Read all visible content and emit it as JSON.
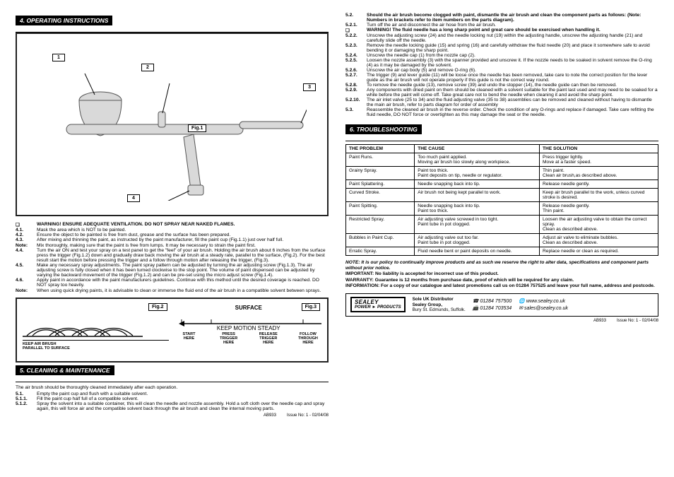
{
  "left": {
    "sec4_title": "4.  OPERATING INSTRUCTIONS",
    "fig1_label": "Fig.1",
    "callouts": {
      "c1": "1",
      "c2": "2",
      "c3": "3",
      "c4": "4"
    },
    "warn_line": "WARNING! ENSURE ADEQUATE VENTILATION. DO NOT SPRAY NEAR NAKED FLAMES.",
    "i41_num": "4.1.",
    "i41": "Mask the area which is NOT to be painted.",
    "i42_num": "4.2.",
    "i42": "Ensure the object to be painted is free from dust, grease and the surface has been prepared.",
    "i43_num": "4.3.",
    "i43": "After mixing and thinning the paint, as instructed by the paint manufacturer, fill the paint cup (Fig.1.1) just over half full.",
    "note1_label": "Note:",
    "note1": "Mix thoroughly, making sure that the paint is free from lumps. It may be necessary to strain the paint first.",
    "i44_num": "4.4.",
    "i44": "Turn the air ON and test your spray on a test panel to get the \"feel\" of your air brush. Holding the air brush about 6 inches from the surface press the trigger (Fig.1.2) down and gradually draw back moving the air brush at a steady rate, parallel to the surface, (Fig.2). For the best result start the motion before pressing the trigger and a follow through motion after releasing the trigger, (Fig.3).",
    "i45_num": "4.5.",
    "i45": "Make any necessary spray adjustments. The paint spray pattern can be adjusted by turning the air adjusting screw (Fig.1.3). The air adjusting screw is fully closed when it has been turned clockwise to the stop point. The volume of paint dispensed can be adjusted by varying the backward movement of the trigger (Fig.1.2) and can be pre-set using the micro adjust screw (Fig.1.4).",
    "i46_num": "4.6.",
    "i46": "Apply paint in accordance with the paint manufacturers guidelines. Continue with this method until the desired coverage is reached. DO NOT spray too heavily.",
    "note2_label": "Note:",
    "note2": "When using quick drying paints, it is advisable to clean or immerse the fluid end of the air brush in a compatible solvent between sprays.",
    "fig2_label": "Fig.2",
    "fig2_caption1": "KEEP AIR BRUSH",
    "fig2_caption2": "PARALLEL TO SURFACE",
    "fig3_label": "Fig.3",
    "fig3_surface": "SURFACE",
    "fig3_steady": "KEEP MOTION STEADY",
    "m1a": "START",
    "m1b": "HERE",
    "m2a": "PRESS",
    "m2b": "TRIGGER",
    "m2c": "HERE",
    "m3a": "RELEASE",
    "m3b": "TRIGGER",
    "m3c": "HERE",
    "m4a": "FOLLOW",
    "m4b": "THROUGH",
    "m4c": "HERE",
    "sec5_title": "5.  CLEANING & MAINTENANCE",
    "c5_intro": "The air brush should be thoroughly cleaned immediately after each operation.",
    "c51_num": "5.1.",
    "c51": "Empty the paint cup and flush with a suitable solvent.",
    "c511_num": "5.1.1.",
    "c511": "Fill the paint cup half full of a compatible solvent.",
    "c512_num": "5.1.2.",
    "c512": "Spray the solvent into a suitable container, this will clean the needle and nozzle assembly. Hold a soft cloth over the needle cap and spray again, this will force air and the compatible solvent back through the air brush and clean the internal moving parts.",
    "issue_left": "AB933         Issue No: 1 - 02/04/08"
  },
  "right": {
    "r52_num": "5.2.",
    "r52": "Should the air brush become clogged with paint, dismantle the air brush and clean the component parts as follows: (Note: Numbers in brackets refer to item numbers on the parts diagram).",
    "r521_num": "5.2.1.",
    "r521": "Turn off the air and disconnect the air hose from the air brush.",
    "r_warn": "WARNING! The fluid needle has a long sharp point and great care should be exercised when handling it.",
    "r522_num": "5.2.2.",
    "r522": "Unscrew the adjusting screw (24) and the needle locking nut (19) within the adjusting handle, unscrew the adjusting handle (21) and carefully slide off the needle.",
    "r523_num": "5.2.3.",
    "r523": "Remove the needle locking guide (15) and spring (16) and carefully withdraw the fluid needle (20) and place it somewhere safe to avoid bending it or damaging the sharp point.",
    "r524_num": "5.2.4.",
    "r524": "Unscrew the needle cap (1) from the nozzle cap (2).",
    "r525_num": "5.2.5.",
    "r525": "Loosen the nozzle assembly (3) with the spanner provided and unscrew it. If the nozzle needs to be soaked in solvent remove the O-ring (4) as it may be damaged by the solvent.",
    "r526_num": "5.2.6.",
    "r526": "Unscrew the air cap body (5) and remove O-ring (6).",
    "r527_num": "5.2.7.",
    "r527": "The trigger (9) and lever guide (11) will be loose once the needle has been removed, take care to note the correct position for the lever guide as the air brush will not operate properly if this guide is not the correct way round.",
    "r528_num": "5.2.8.",
    "r528": "To remove the needle guide (13), remove screw (39) and undo the stopper (14), the needle guide can then be removed.",
    "r529_num": "5.2.9.",
    "r529": "Any components with dried paint on them should be cleaned with a solvent suitable for the paint last used and may need to be soaked for a while before the paint will come off. Take great care not to bend the needle when cleaning it and avoid the sharp point.",
    "r5210_num": "5.2.10.",
    "r5210": "The air inlet valve (25 to 34) and the fluid adjusting valve (35 to 38) assemblies can be removed and cleaned without having to dismantle the main air brush, refer to parts diagram for order of assembly",
    "r53_num": "5.3.",
    "r53": "Reassemble the cleaned air brush in the reverse order. Check the condition of any O-rings and replace if damaged. Take care refitting the fluid needle, DO NOT force or overtighten as this may damage the seat or the needle.",
    "sec6_title": "6.  TROUBLESHOOTING",
    "th1": "THE PROBLEM",
    "th2": "THE CAUSE",
    "th3": "THE SOLUTION",
    "rows": [
      {
        "p": "Paint Runs.",
        "c": "Too much paint applied.\nMoving air brush too slowly along workpiece.",
        "s": "Press trigger lightly.\nMove at a faster speed."
      },
      {
        "p": "Grainy Spray.",
        "c": "Paint too thick.\nPaint deposits on tip, needle or regulator.",
        "s": "Thin paint.\nClean air brush,as described above."
      },
      {
        "p": "Paint Splattering.",
        "c": "Needle snapping back into tip.",
        "s": "Release needle gently."
      },
      {
        "p": "Curved Stroke.",
        "c": "Air brush not being kept parallel to work.",
        "s": "Keep air brush parallel to the work, unless curved stroke is desired."
      },
      {
        "p": "Paint Spitting.",
        "c": "Needle snapping back into tip.\nPaint too thick.",
        "s": "Release needle gently.\nThin paint."
      },
      {
        "p": "Restricted Spray.",
        "c": "Air adjusting valve screwed in too tight.\nPaint tube in pot clogged.",
        "s": "Loosen the air adjusting valve to obtain the correct spray.\nClean as described above."
      },
      {
        "p": "Bubbles in Paint Cup.",
        "c": "Air adjusting valve out too far.\nPaint tube in pot clogged.",
        "s": "Adjust air valve to eliminate bubbles.\nClean as described above."
      },
      {
        "p": "Erratic Spray.",
        "c": "Fluid needle bent or paint deposits on needle.",
        "s": "Replace needle or clean as required."
      }
    ],
    "policy": "NOTE: It is our policy to continually improve products and as such we reserve the right to alter data, specifications and component parts without prior notice.",
    "important": "IMPORTANT: No liability is accepted for incorrect use of this product.",
    "warranty": "WARRANTY: Guarantee is 12 months from purchase date, proof of which will be required for any claim.",
    "info": "INFORMATION: For a copy of our catalogue and latest promotions call us on 01284 757525 and leave your full name, address and postcode.",
    "logo1": "SEALEY",
    "logo2": "POWER ► PRODUCTS",
    "dist1": "Sole UK Distributor",
    "dist2": "Sealey Group,",
    "dist3": "Bury St. Edmunds, Suffolk.",
    "tel": "01284 757500",
    "fax": "01284 703534",
    "web": "www.sealey.co.uk",
    "mail": "sales@sealey.co.uk",
    "issue_right": "AB933         Issue No: 1 - 02/04/08"
  }
}
